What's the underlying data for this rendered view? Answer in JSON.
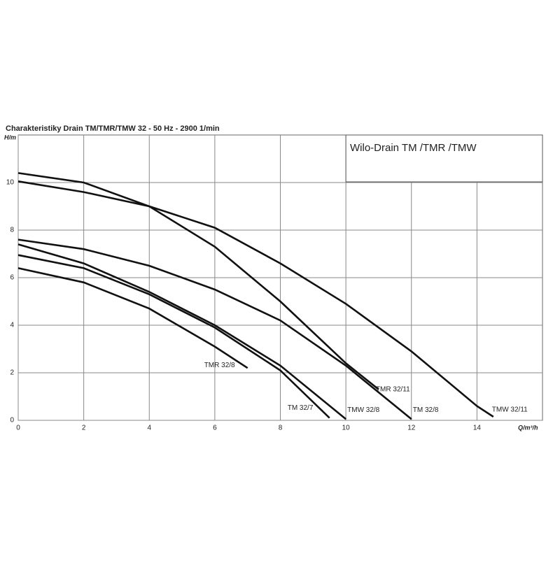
{
  "chart_data": {
    "type": "line",
    "title": "Charakteristiky Drain TM/TMR/TMW 32 - 50 Hz - 2900 1/min",
    "box_title": "Wilo-Drain TM /TMR /TMW",
    "y_label": "H/m",
    "x_label": "Q/m³/h",
    "xlim": [
      0,
      16
    ],
    "ylim": [
      0,
      12
    ],
    "xticks": [
      0,
      2,
      4,
      6,
      8,
      10,
      12,
      14
    ],
    "yticks": [
      0,
      2,
      4,
      6,
      8,
      10
    ],
    "grid": true,
    "series": [
      {
        "name": "TMW 32/11",
        "color": "#111111",
        "x": [
          0,
          2,
          4,
          6,
          8,
          10,
          12,
          14,
          14.5
        ],
        "values": [
          10.05,
          9.6,
          9.0,
          8.1,
          6.6,
          4.9,
          2.9,
          0.6,
          0.15
        ]
      },
      {
        "name": "TMR 32/11",
        "color": "#111111",
        "x": [
          0,
          2,
          4,
          6,
          8,
          10,
          11
        ],
        "values": [
          10.4,
          10.0,
          9.0,
          7.3,
          5.0,
          2.4,
          1.3
        ]
      },
      {
        "name": "TM 32/8",
        "color": "#111111",
        "x": [
          0,
          2,
          4,
          6,
          8,
          10,
          12
        ],
        "values": [
          7.6,
          7.2,
          6.5,
          5.5,
          4.2,
          2.3,
          0.05
        ]
      },
      {
        "name": "TMW 32/8",
        "color": "#111111",
        "x": [
          0,
          2,
          4,
          6,
          8,
          10
        ],
        "values": [
          7.4,
          6.6,
          5.4,
          4.0,
          2.3,
          0.05
        ]
      },
      {
        "name": "TM 32/7",
        "color": "#111111",
        "x": [
          0,
          2,
          4,
          6,
          8,
          9.5
        ],
        "values": [
          6.95,
          6.4,
          5.3,
          3.9,
          2.1,
          0.1
        ]
      },
      {
        "name": "TMR 32/8",
        "color": "#111111",
        "x": [
          0,
          2,
          4,
          6,
          7
        ],
        "values": [
          6.4,
          5.8,
          4.7,
          3.1,
          2.2
        ]
      }
    ]
  }
}
